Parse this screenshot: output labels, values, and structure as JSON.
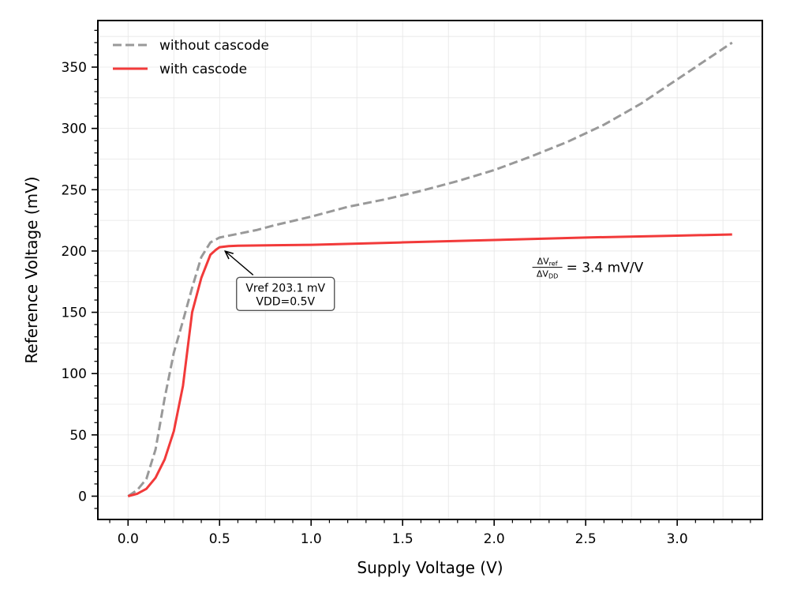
{
  "chart_data": {
    "type": "line",
    "title": "",
    "xlabel": "Supply Voltage (V)",
    "ylabel": "Reference Voltage (mV)",
    "xlim": [
      -0.165,
      3.465
    ],
    "ylim": [
      -19,
      388
    ],
    "xticks": [
      0.0,
      0.5,
      1.0,
      1.5,
      2.0,
      2.5,
      3.0
    ],
    "xtick_labels": [
      "0.0",
      "0.5",
      "1.0",
      "1.5",
      "2.0",
      "2.5",
      "3.0"
    ],
    "yticks": [
      0,
      50,
      100,
      150,
      200,
      250,
      300,
      350
    ],
    "ytick_labels": [
      "0",
      "50",
      "100",
      "150",
      "200",
      "250",
      "300",
      "350"
    ],
    "grid": true,
    "legend_position": "top-left",
    "series": [
      {
        "name": "without cascode",
        "style": "dashed",
        "color": "#999999",
        "x": [
          0.0,
          0.05,
          0.1,
          0.15,
          0.2,
          0.25,
          0.3,
          0.35,
          0.4,
          0.45,
          0.5,
          0.6,
          0.7,
          0.8,
          1.0,
          1.2,
          1.4,
          1.6,
          1.8,
          2.0,
          2.2,
          2.4,
          2.6,
          2.8,
          3.0,
          3.2,
          3.3
        ],
        "values": [
          0,
          5,
          14,
          38,
          80,
          117,
          143,
          170,
          195,
          207,
          211,
          214,
          217,
          221,
          228,
          236,
          242,
          249,
          257,
          266,
          277,
          289,
          303,
          320,
          340,
          360,
          370
        ]
      },
      {
        "name": "with cascode",
        "style": "solid",
        "color": "#f23a3a",
        "x": [
          0.0,
          0.05,
          0.1,
          0.15,
          0.2,
          0.25,
          0.3,
          0.35,
          0.4,
          0.45,
          0.48,
          0.5,
          0.55,
          0.6,
          0.8,
          1.0,
          1.5,
          2.0,
          2.5,
          3.0,
          3.3
        ],
        "values": [
          0,
          2,
          6,
          15,
          30,
          53,
          90,
          150,
          178,
          197,
          201,
          203.1,
          204,
          204.3,
          204.7,
          205,
          207,
          209,
          211,
          212.5,
          213.5
        ]
      }
    ],
    "annotations": [
      {
        "label_lines": [
          "Vref 203.1 mV",
          "VDD=0.5V"
        ],
        "point": [
          0.5,
          203.1
        ],
        "text_anchor": [
          0.86,
          165
        ]
      },
      {
        "formula_numerator": "ΔV",
        "formula_numerator_sub": "ref",
        "formula_denominator": "ΔV",
        "formula_denominator_sub": "DD",
        "formula_value": "= 3.4 mV/V",
        "anchor": [
          2.2,
          186
        ]
      }
    ]
  }
}
